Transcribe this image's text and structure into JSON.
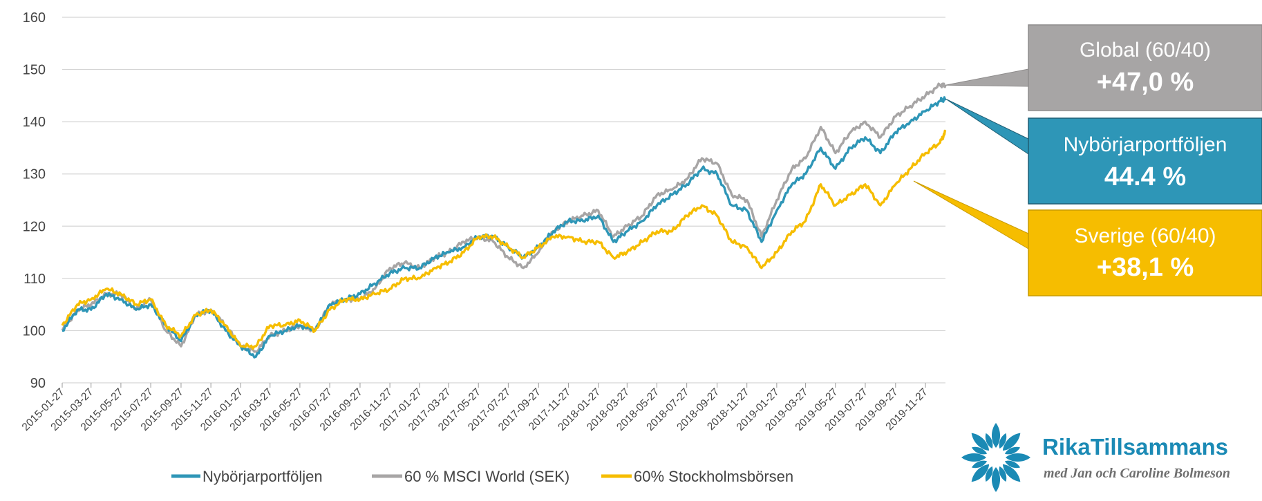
{
  "chart_data": {
    "type": "line",
    "title": "",
    "xlabel": "",
    "ylabel": "",
    "ylim": [
      90,
      160
    ],
    "yticks": [
      "90",
      "100",
      "110",
      "120",
      "130",
      "140",
      "150",
      "160"
    ],
    "xticks": [
      "2015-01-27",
      "2015-03-27",
      "2015-05-27",
      "2015-07-27",
      "2015-09-27",
      "2015-11-27",
      "2016-01-27",
      "2016-03-27",
      "2016-05-27",
      "2016-07-27",
      "2016-09-27",
      "2016-11-27",
      "2017-01-27",
      "2017-03-27",
      "2017-05-27",
      "2017-07-27",
      "2017-09-27",
      "2017-11-27",
      "2018-01-27",
      "2018-03-27",
      "2018-05-27",
      "2018-07-27",
      "2018-09-27",
      "2018-11-27",
      "2019-01-27",
      "2019-03-27",
      "2019-05-27",
      "2019-07-27",
      "2019-09-27",
      "2019-11-27"
    ],
    "grid": true,
    "legend_position": "bottom",
    "series": [
      {
        "name": "Nybörjarportföljen",
        "color": "#2e96b7",
        "points": [
          [
            "2015-01-27",
            100
          ],
          [
            "2015-02-27",
            104
          ],
          [
            "2015-03-27",
            104
          ],
          [
            "2015-04-27",
            107
          ],
          [
            "2015-05-27",
            106
          ],
          [
            "2015-06-27",
            104
          ],
          [
            "2015-07-27",
            105
          ],
          [
            "2015-08-27",
            101
          ],
          [
            "2015-09-27",
            98
          ],
          [
            "2015-10-27",
            103
          ],
          [
            "2015-11-27",
            104
          ],
          [
            "2015-12-27",
            100
          ],
          [
            "2016-01-27",
            97
          ],
          [
            "2016-02-27",
            95
          ],
          [
            "2016-03-27",
            99
          ],
          [
            "2016-04-27",
            100
          ],
          [
            "2016-05-27",
            101
          ],
          [
            "2016-06-27",
            100
          ],
          [
            "2016-07-27",
            105
          ],
          [
            "2016-08-27",
            106
          ],
          [
            "2016-09-27",
            107
          ],
          [
            "2016-10-27",
            109
          ],
          [
            "2016-11-27",
            111
          ],
          [
            "2016-12-27",
            112
          ],
          [
            "2017-01-27",
            112
          ],
          [
            "2017-02-27",
            114
          ],
          [
            "2017-03-27",
            115
          ],
          [
            "2017-04-27",
            116
          ],
          [
            "2017-05-27",
            118
          ],
          [
            "2017-06-27",
            118
          ],
          [
            "2017-07-27",
            116
          ],
          [
            "2017-08-27",
            114
          ],
          [
            "2017-09-27",
            116
          ],
          [
            "2017-10-27",
            119
          ],
          [
            "2017-11-27",
            121
          ],
          [
            "2017-12-27",
            121
          ],
          [
            "2018-01-27",
            122
          ],
          [
            "2018-02-27",
            117
          ],
          [
            "2018-03-27",
            119
          ],
          [
            "2018-04-27",
            121
          ],
          [
            "2018-05-27",
            124
          ],
          [
            "2018-06-27",
            126
          ],
          [
            "2018-07-27",
            128
          ],
          [
            "2018-08-27",
            131
          ],
          [
            "2018-09-27",
            130
          ],
          [
            "2018-10-27",
            124
          ],
          [
            "2018-11-27",
            123
          ],
          [
            "2018-12-27",
            117
          ],
          [
            "2019-01-27",
            123
          ],
          [
            "2019-02-27",
            128
          ],
          [
            "2019-03-27",
            130
          ],
          [
            "2019-04-27",
            135
          ],
          [
            "2019-05-27",
            131
          ],
          [
            "2019-06-27",
            135
          ],
          [
            "2019-07-27",
            137
          ],
          [
            "2019-08-27",
            134
          ],
          [
            "2019-09-27",
            138
          ],
          [
            "2019-10-27",
            140
          ],
          [
            "2019-11-27",
            142
          ],
          [
            "2019-12-27",
            144
          ],
          [
            "2020-01-07",
            144.4
          ]
        ]
      },
      {
        "name": "60 % MSCI World (SEK)",
        "color": "#a7a5a5",
        "points": [
          [
            "2015-01-27",
            100
          ],
          [
            "2015-02-27",
            104
          ],
          [
            "2015-03-27",
            105
          ],
          [
            "2015-04-27",
            107
          ],
          [
            "2015-05-27",
            107
          ],
          [
            "2015-06-27",
            104
          ],
          [
            "2015-07-27",
            106
          ],
          [
            "2015-08-27",
            100
          ],
          [
            "2015-09-27",
            97
          ],
          [
            "2015-10-27",
            103
          ],
          [
            "2015-11-27",
            104
          ],
          [
            "2015-12-27",
            101
          ],
          [
            "2016-01-27",
            97
          ],
          [
            "2016-02-27",
            96
          ],
          [
            "2016-03-27",
            99
          ],
          [
            "2016-04-27",
            100
          ],
          [
            "2016-05-27",
            101
          ],
          [
            "2016-06-27",
            100
          ],
          [
            "2016-07-27",
            105
          ],
          [
            "2016-08-27",
            106
          ],
          [
            "2016-09-27",
            106
          ],
          [
            "2016-10-27",
            108
          ],
          [
            "2016-11-27",
            112
          ],
          [
            "2016-12-27",
            113
          ],
          [
            "2017-01-27",
            112
          ],
          [
            "2017-02-27",
            114
          ],
          [
            "2017-03-27",
            115
          ],
          [
            "2017-04-27",
            117
          ],
          [
            "2017-05-27",
            118
          ],
          [
            "2017-06-27",
            117
          ],
          [
            "2017-07-27",
            114
          ],
          [
            "2017-08-27",
            112
          ],
          [
            "2017-09-27",
            115
          ],
          [
            "2017-10-27",
            119
          ],
          [
            "2017-11-27",
            121
          ],
          [
            "2017-12-27",
            122
          ],
          [
            "2018-01-27",
            123
          ],
          [
            "2018-02-27",
            118
          ],
          [
            "2018-03-27",
            120
          ],
          [
            "2018-04-27",
            122
          ],
          [
            "2018-05-27",
            126
          ],
          [
            "2018-06-27",
            127
          ],
          [
            "2018-07-27",
            129
          ],
          [
            "2018-08-27",
            133
          ],
          [
            "2018-09-27",
            132
          ],
          [
            "2018-10-27",
            126
          ],
          [
            "2018-11-27",
            125
          ],
          [
            "2018-12-27",
            118
          ],
          [
            "2019-01-27",
            125
          ],
          [
            "2019-02-27",
            131
          ],
          [
            "2019-03-27",
            133
          ],
          [
            "2019-04-27",
            139
          ],
          [
            "2019-05-27",
            134
          ],
          [
            "2019-06-27",
            138
          ],
          [
            "2019-07-27",
            140
          ],
          [
            "2019-08-27",
            137
          ],
          [
            "2019-09-27",
            141
          ],
          [
            "2019-10-27",
            143
          ],
          [
            "2019-11-27",
            145
          ],
          [
            "2019-12-27",
            147
          ],
          [
            "2020-01-07",
            147
          ]
        ]
      },
      {
        "name": "60% Stockholmsbörsen",
        "color": "#f6bd00",
        "points": [
          [
            "2015-01-27",
            101
          ],
          [
            "2015-02-27",
            105
          ],
          [
            "2015-03-27",
            106
          ],
          [
            "2015-04-27",
            108
          ],
          [
            "2015-05-27",
            107
          ],
          [
            "2015-06-27",
            105
          ],
          [
            "2015-07-27",
            106
          ],
          [
            "2015-08-27",
            101
          ],
          [
            "2015-09-27",
            99
          ],
          [
            "2015-10-27",
            103
          ],
          [
            "2015-11-27",
            104
          ],
          [
            "2015-12-27",
            101
          ],
          [
            "2016-01-27",
            97
          ],
          [
            "2016-02-27",
            97
          ],
          [
            "2016-03-27",
            101
          ],
          [
            "2016-04-27",
            101
          ],
          [
            "2016-05-27",
            102
          ],
          [
            "2016-06-27",
            100
          ],
          [
            "2016-07-27",
            104
          ],
          [
            "2016-08-27",
            106
          ],
          [
            "2016-09-27",
            106
          ],
          [
            "2016-10-27",
            107
          ],
          [
            "2016-11-27",
            108
          ],
          [
            "2016-12-27",
            110
          ],
          [
            "2017-01-27",
            110
          ],
          [
            "2017-02-27",
            112
          ],
          [
            "2017-03-27",
            113
          ],
          [
            "2017-04-27",
            115
          ],
          [
            "2017-05-27",
            118
          ],
          [
            "2017-06-27",
            118
          ],
          [
            "2017-07-27",
            116
          ],
          [
            "2017-08-27",
            114
          ],
          [
            "2017-09-27",
            116
          ],
          [
            "2017-10-27",
            118
          ],
          [
            "2017-11-27",
            118
          ],
          [
            "2017-12-27",
            117
          ],
          [
            "2018-01-27",
            117
          ],
          [
            "2018-02-27",
            114
          ],
          [
            "2018-03-27",
            115
          ],
          [
            "2018-04-27",
            117
          ],
          [
            "2018-05-27",
            119
          ],
          [
            "2018-06-27",
            119
          ],
          [
            "2018-07-27",
            122
          ],
          [
            "2018-08-27",
            124
          ],
          [
            "2018-09-27",
            122
          ],
          [
            "2018-10-27",
            117
          ],
          [
            "2018-11-27",
            116
          ],
          [
            "2018-12-27",
            112
          ],
          [
            "2019-01-27",
            115
          ],
          [
            "2019-02-27",
            119
          ],
          [
            "2019-03-27",
            121
          ],
          [
            "2019-04-27",
            128
          ],
          [
            "2019-05-27",
            124
          ],
          [
            "2019-06-27",
            126
          ],
          [
            "2019-07-27",
            128
          ],
          [
            "2019-08-27",
            124
          ],
          [
            "2019-09-27",
            128
          ],
          [
            "2019-10-27",
            131
          ],
          [
            "2019-11-27",
            134
          ],
          [
            "2019-12-27",
            136
          ],
          [
            "2020-01-07",
            138.1
          ]
        ]
      }
    ]
  },
  "callouts": [
    {
      "name": "Global (60/40)",
      "value": "+47,0 %",
      "color": "#a7a5a5"
    },
    {
      "name": "Nybörjarportföljen",
      "value": "44.4 %",
      "color": "#2e96b7"
    },
    {
      "name": "Sverige (60/40)",
      "value": "+38,1 %",
      "color": "#f6bd00"
    }
  ],
  "logo": {
    "brand": "RikaTillsammans",
    "tagline": "med Jan och Caroline Bolmeson",
    "color": "#1b8ab5"
  }
}
